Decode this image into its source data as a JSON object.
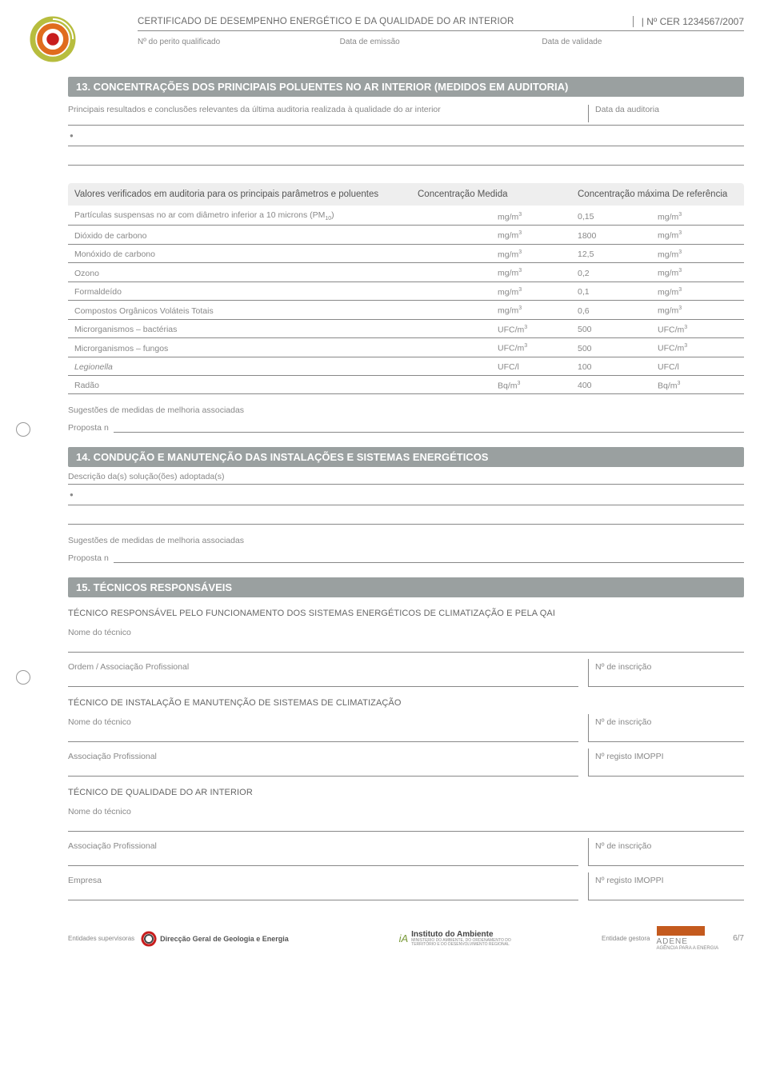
{
  "header": {
    "title": "CERTIFICADO DE DESEMPENHO ENERGÉTICO E DA QUALIDADE DO AR INTERIOR",
    "cert_number": "| Nº CER 1234567/2007",
    "meta": {
      "perito": "Nº do perito qualificado",
      "emissao": "Data de emissão",
      "validade": "Data de validade"
    }
  },
  "logo_colors": {
    "outer": "#b7bd3e",
    "mid": "#e06c1e",
    "inner": "#c81d1d"
  },
  "section13": {
    "title": "13. CONCENTRAÇÕES DOS PRINCIPAIS POLUENTES NO AR INTERIOR (MEDIDOS EM AUDITORIA)",
    "subtitle": "Principais resultados e conclusões relevantes da última auditoria realizada à qualidade do ar interior",
    "audit_date_label": "Data da auditoria",
    "table_header": {
      "name": "Valores verificados em auditoria para os principais parâmetros e poluentes",
      "mid": "Concentração Medida",
      "ref": "Concentração máxima De referência"
    },
    "rows": [
      {
        "name": "Partículas suspensas no ar com diâmetro inferior a 10 microns (PM",
        "sub": "10",
        "name_suffix": ")",
        "unit1": "mg/m",
        "sup1": "3",
        "val": "0,15",
        "unit2": "mg/m",
        "sup2": "3"
      },
      {
        "name": "Dióxido de carbono",
        "unit1": "mg/m",
        "sup1": "3",
        "val": "1800",
        "unit2": "mg/m",
        "sup2": "3"
      },
      {
        "name": "Monóxido de carbono",
        "unit1": "mg/m",
        "sup1": "3",
        "val": "12,5",
        "unit2": "mg/m",
        "sup2": "3"
      },
      {
        "name": "Ozono",
        "unit1": "mg/m",
        "sup1": "3",
        "val": "0,2",
        "unit2": "mg/m",
        "sup2": "3"
      },
      {
        "name": "Formaldeído",
        "unit1": "mg/m",
        "sup1": "3",
        "val": "0,1",
        "unit2": "mg/m",
        "sup2": "3"
      },
      {
        "name": "Compostos Orgânicos Voláteis Totais",
        "unit1": "mg/m",
        "sup1": "3",
        "val": "0,6",
        "unit2": "mg/m",
        "sup2": "3"
      },
      {
        "name": "Microrganismos – bactérias",
        "unit1": "UFC/m",
        "sup1": "3",
        "val": "500",
        "unit2": "UFC/m",
        "sup2": "3"
      },
      {
        "name": "Microrganismos – fungos",
        "unit1": "UFC/m",
        "sup1": "3",
        "val": "500",
        "unit2": "UFC/m",
        "sup2": "3"
      },
      {
        "name": "Legionella",
        "italic": true,
        "unit1": "UFC/l",
        "val": "100",
        "unit2": "UFC/l"
      },
      {
        "name": "Radão",
        "unit1": "Bq/m",
        "sup1": "3",
        "val": "400",
        "unit2": "Bq/m",
        "sup2": "3"
      }
    ],
    "sugg_label": "Sugestões de medidas de melhoria associadas",
    "proposta": "Proposta n"
  },
  "section14": {
    "title": "14. CONDUÇÃO E MANUTENÇÃO DAS INSTALAÇÕES E SISTEMAS ENERGÉTICOS",
    "desc": "Descrição da(s) solução(ões) adoptada(s)",
    "sugg_label": "Sugestões de medidas de melhoria associadas",
    "proposta": "Proposta n"
  },
  "section15": {
    "title": "15. TÉCNICOS RESPONSÁVEIS",
    "sub1": "TÉCNICO RESPONSÁVEL PELO FUNCIONAMENTO DOS SISTEMAS ENERGÉTICOS DE CLIMATIZAÇÃO E PELA QAI",
    "nome": "Nome do técnico",
    "ordem": "Ordem / Associação Profissional",
    "inscricao": "Nº de inscrição",
    "sub2": "TÉCNICO DE INSTALAÇÃO E MANUTENÇÃO DE SISTEMAS DE CLIMATIZAÇÃO",
    "assoc": "Associação Profissional",
    "registo": "Nº registo IMOPPI",
    "sub3": "TÉCNICO DE QUALIDADE DO AR INTERIOR",
    "empresa": "Empresa"
  },
  "footer": {
    "sup_label": "Entidades supervisoras",
    "org1": "Direcção Geral de Geologia e Energia",
    "org2": "Instituto do Ambiente",
    "org2_sub": "MINISTÉRIO DO AMBIENTE, DO ORDENAMENTO DO TERRITÓRIO E DO DESENVOLVIMENTO REGIONAL",
    "gestora": "Entidade gestora",
    "adene": "ADENE",
    "adene_sub": "AGÊNCIA PARA A ENERGIA",
    "page": "6/7",
    "adene_color": "#c45a1e"
  }
}
